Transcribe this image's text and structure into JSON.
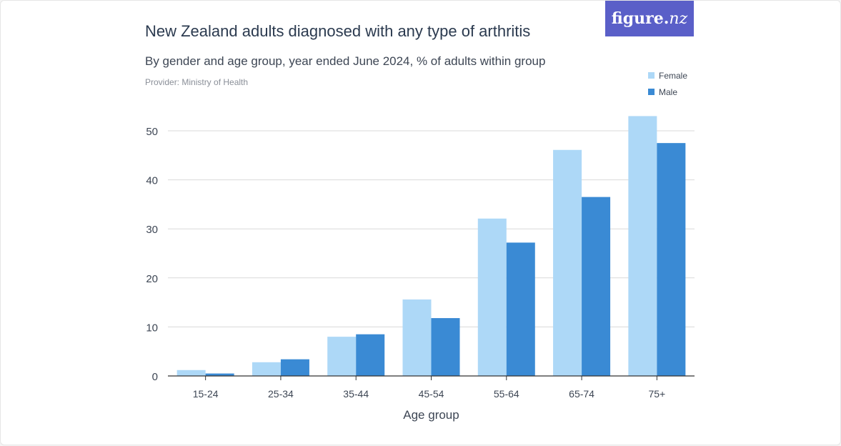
{
  "header": {
    "title": "New Zealand adults diagnosed with any type of arthritis",
    "subtitle": "By gender and age group, year ended June 2024, % of adults within group",
    "provider": "Provider: Ministry of Health",
    "logo_text": "figure.",
    "logo_suffix": "nz"
  },
  "colors": {
    "female": "#add8f7",
    "male": "#3a8ad4",
    "grid": "#d9d9d9",
    "axis": "#333333",
    "logo_bg": "#5a5fc8"
  },
  "chart_data": {
    "type": "bar",
    "title": "New Zealand adults diagnosed with any type of arthritis",
    "subtitle": "By gender and age group, year ended June 2024, % of adults within group",
    "xlabel": "Age group",
    "ylabel": "",
    "categories": [
      "15-24",
      "25-34",
      "35-44",
      "45-54",
      "55-64",
      "65-74",
      "75+"
    ],
    "series": [
      {
        "name": "Female",
        "values": [
          1.2,
          2.8,
          8.0,
          15.6,
          32.1,
          46.1,
          53.0
        ]
      },
      {
        "name": "Male",
        "values": [
          0.5,
          3.4,
          8.5,
          11.8,
          27.2,
          36.5,
          47.5
        ]
      }
    ],
    "ylim": [
      0,
      53
    ],
    "yticks": [
      0,
      10,
      20,
      30,
      40,
      50
    ],
    "grid": true,
    "legend_position": "top-right"
  }
}
